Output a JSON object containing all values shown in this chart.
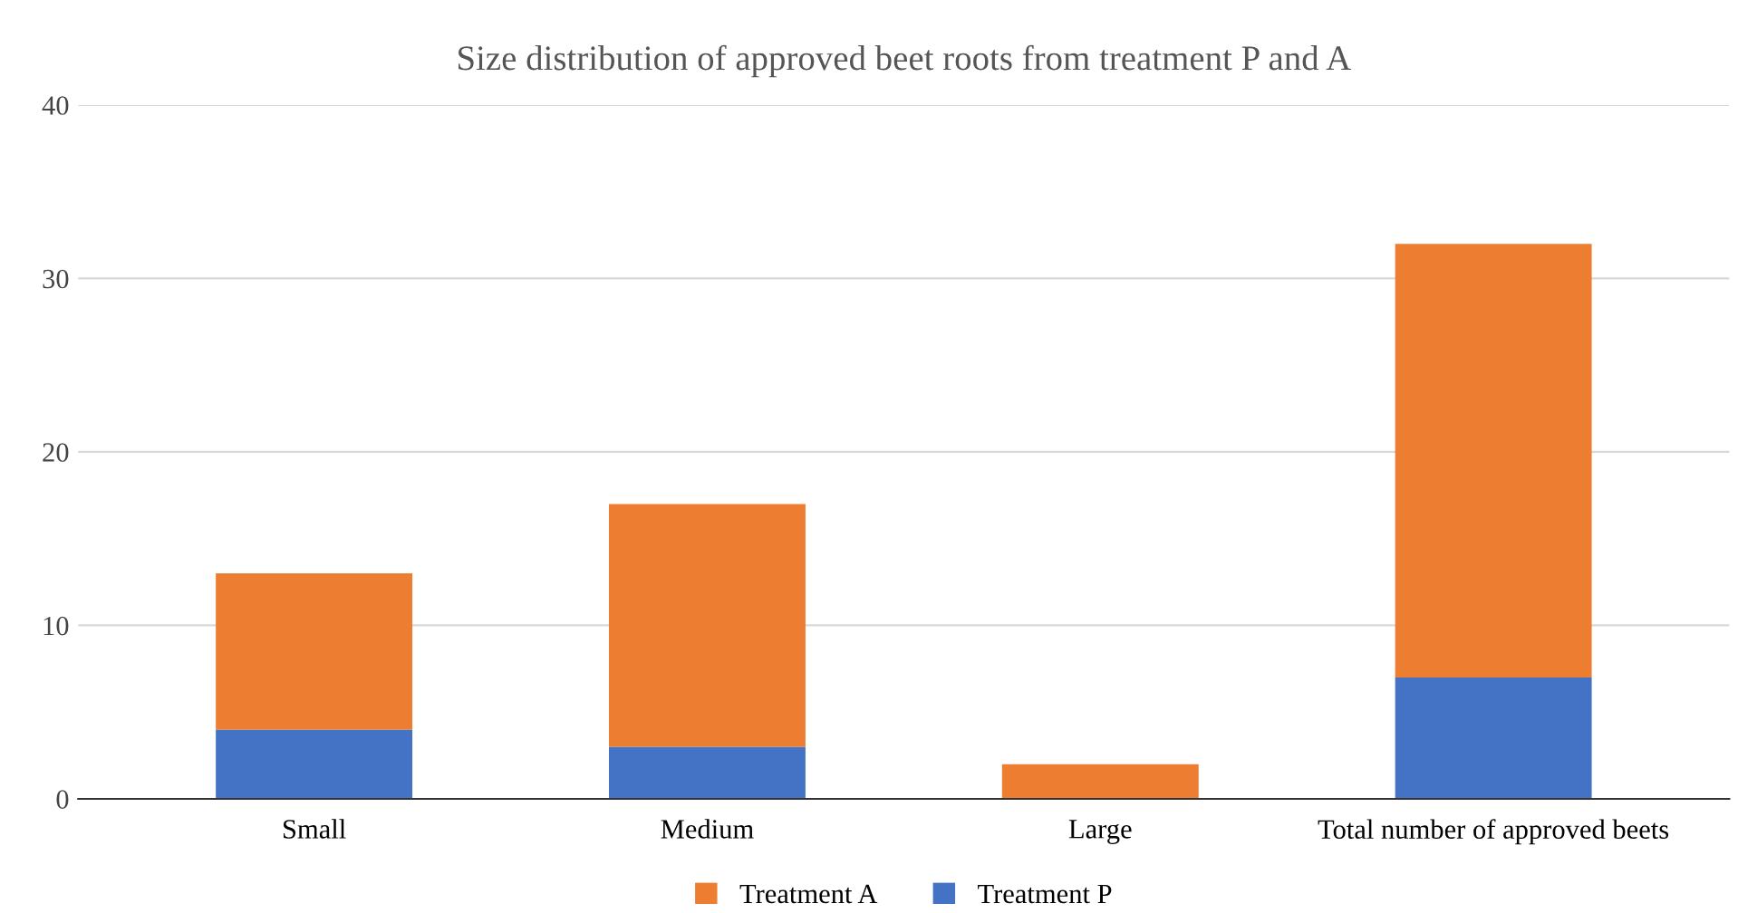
{
  "chart_data": {
    "type": "bar",
    "stacked": true,
    "title": "Size distribution of approved beet roots from treatment P and A",
    "categories": [
      "Small",
      "Medium",
      "Large",
      "Total number of approved beets"
    ],
    "series": [
      {
        "name": "Treatment P",
        "color": "#4472c4",
        "values": [
          4,
          3,
          0,
          7
        ]
      },
      {
        "name": "Treatment A",
        "color": "#ed7d31",
        "values": [
          9,
          14,
          2,
          25
        ]
      }
    ],
    "ylim": [
      0,
      40
    ],
    "yticks": [
      0,
      10,
      20,
      30,
      40
    ],
    "grid": "y",
    "legend": "bottom"
  }
}
